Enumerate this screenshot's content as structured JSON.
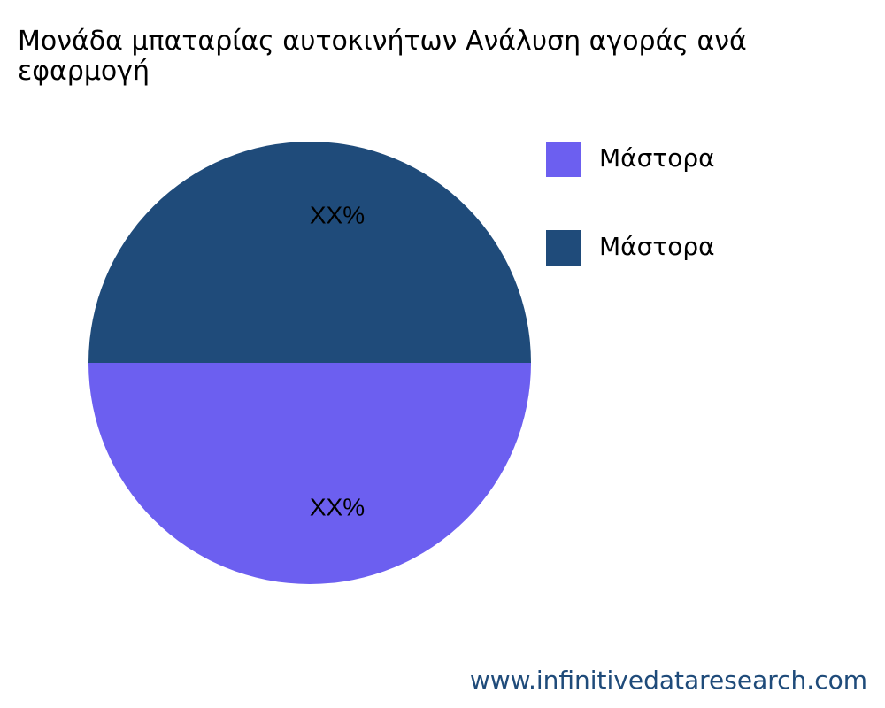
{
  "chart_data": {
    "type": "pie",
    "title": "Μονάδα μπαταρίας αυτοκινήτων Ανάλυση αγοράς ανά εφαρμογή",
    "categories": [
      "Μάστορα",
      "Μάστορα"
    ],
    "values": [
      50,
      50
    ],
    "value_labels": [
      "XX%",
      "XX%"
    ],
    "colors": [
      "#6c5ff0",
      "#1f4b7a"
    ],
    "legend": "top-right",
    "watermark": "www.infinitivedataresearch.com"
  }
}
